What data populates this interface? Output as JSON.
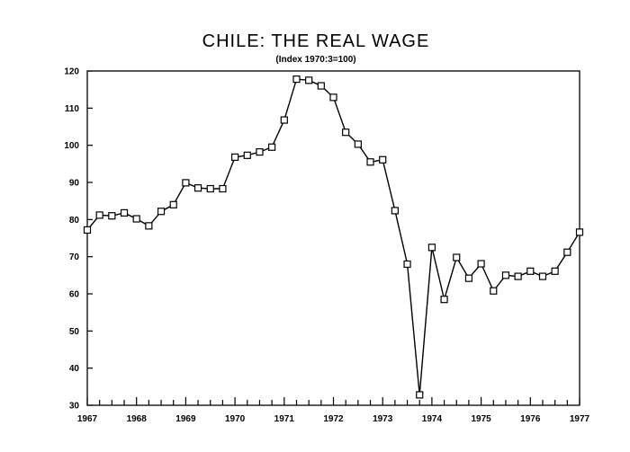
{
  "chart_data": {
    "type": "line",
    "title": "CHILE: THE REAL WAGE",
    "subtitle": "(Index 1970:3=100)",
    "xlabel": "",
    "ylabel": "",
    "xlim": [
      1967,
      1977
    ],
    "ylim": [
      30,
      120
    ],
    "grid": false,
    "x_ticks": [
      "1967",
      "1968",
      "1969",
      "1970",
      "1971",
      "1972",
      "1973",
      "1974",
      "1975",
      "1976",
      "1977"
    ],
    "y_ticks": [
      "30",
      "40",
      "50",
      "60",
      "70",
      "80",
      "90",
      "100",
      "110",
      "120"
    ],
    "series": [
      {
        "name": "",
        "marker": "square",
        "color": "#000000",
        "x": [
          1967.0,
          1967.25,
          1967.5,
          1967.75,
          1968.0,
          1968.25,
          1968.5,
          1968.75,
          1969.0,
          1969.25,
          1969.5,
          1969.75,
          1970.0,
          1970.25,
          1970.5,
          1970.75,
          1971.0,
          1971.25,
          1971.5,
          1971.75,
          1972.0,
          1972.25,
          1972.5,
          1972.75,
          1973.0,
          1973.25,
          1973.5,
          1973.75,
          1974.0,
          1974.25,
          1974.5,
          1974.75,
          1975.0,
          1975.25,
          1975.5,
          1975.75,
          1976.0,
          1976.25,
          1976.5,
          1976.75,
          1977.0
        ],
        "y": [
          77.2,
          81.2,
          81.0,
          81.8,
          80.2,
          78.3,
          82.2,
          84.0,
          89.9,
          88.5,
          88.3,
          88.3,
          96.8,
          97.3,
          98.2,
          99.5,
          106.8,
          117.8,
          117.5,
          116.0,
          112.9,
          103.5,
          100.3,
          95.5,
          96.1,
          82.4,
          68.0,
          32.8,
          72.5,
          58.5,
          69.8,
          64.2,
          68.1,
          60.8,
          65.0,
          64.7,
          66.1,
          64.7,
          66.1,
          71.2,
          76.6
        ]
      }
    ]
  }
}
